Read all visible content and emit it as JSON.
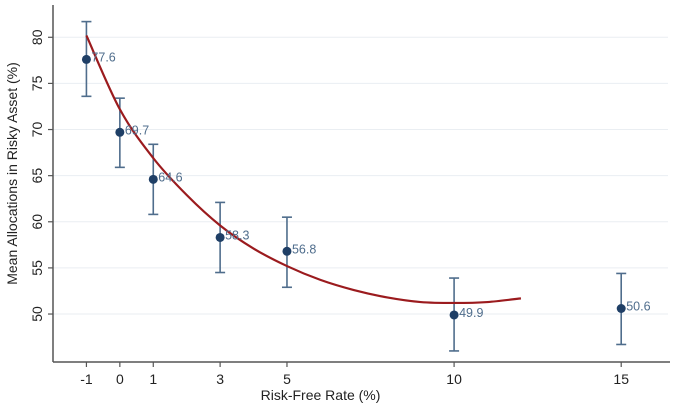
{
  "chart_data": {
    "type": "scatter",
    "title": "",
    "xlabel": "Risk-Free Rate (%)",
    "ylabel": "Mean Allocations in Risky Asset (%)",
    "x_ticks": [
      -1,
      0,
      1,
      3,
      5,
      10,
      15
    ],
    "x_tick_labels": [
      "-1",
      "0",
      "1",
      "3",
      "5",
      "10",
      "15"
    ],
    "y_ticks": [
      50,
      55,
      60,
      65,
      70,
      75,
      80
    ],
    "y_tick_labels": [
      "50",
      "55",
      "60",
      "65",
      "70",
      "75",
      "80"
    ],
    "xlim": [
      -2.0,
      16.4
    ],
    "ylim": [
      44.8,
      83.5
    ],
    "grid": "horizontal",
    "series": [
      {
        "name": "Mean allocation",
        "x": [
          -1,
          0,
          1,
          3,
          5,
          10,
          15
        ],
        "y": [
          77.6,
          69.7,
          64.6,
          58.3,
          56.8,
          49.9,
          50.6
        ],
        "labels": [
          "77.6",
          "69.7",
          "64.6",
          "58.3",
          "56.8",
          "49.9",
          "50.6"
        ],
        "ci_low": [
          73.6,
          65.9,
          60.8,
          54.5,
          52.9,
          46.0,
          46.7
        ],
        "ci_high": [
          81.7,
          73.4,
          68.4,
          62.1,
          60.5,
          53.9,
          54.4
        ],
        "color": "#1f3f66"
      },
      {
        "name": "Fitted curve",
        "type": "line",
        "x": [
          -1,
          0,
          1,
          2,
          3,
          4,
          5,
          6,
          7,
          8,
          9,
          10,
          11,
          12
        ],
        "y": [
          80.2,
          72.2,
          66.9,
          62.9,
          59.6,
          57.1,
          55.2,
          53.7,
          52.6,
          51.8,
          51.3,
          51.2,
          51.3,
          51.7
        ],
        "color": "#9b1b1e"
      }
    ],
    "colors": {
      "point": "#1f3f66",
      "errorbar": "#4f6d8c",
      "label": "#4f6d8c",
      "curve": "#9b1b1e",
      "grid": "#eaeef2",
      "axis": "#555555"
    }
  }
}
